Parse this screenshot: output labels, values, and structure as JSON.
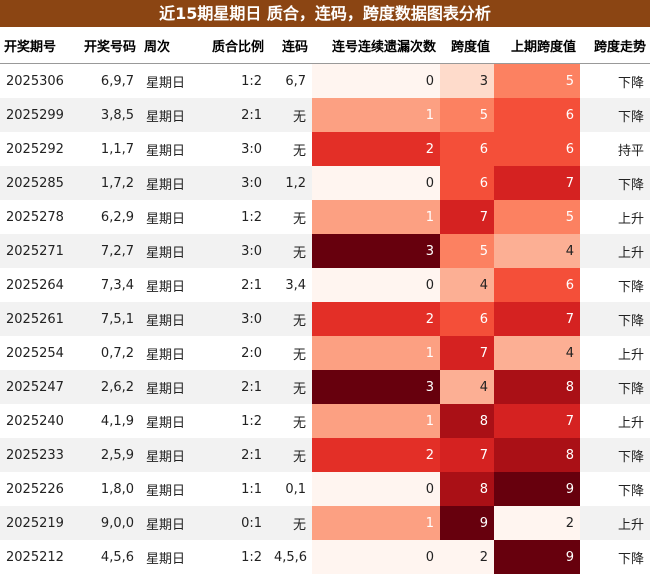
{
  "header": {
    "title": "近15期星期日 质合，连码，跨度数据图表分析"
  },
  "table": {
    "columns": [
      "开奖期号",
      "开奖号码",
      "周次",
      "质合比例",
      "连码",
      "连号连续遗漏次数",
      "跨度值",
      "上期跨度值",
      "跨度走势"
    ],
    "rows": [
      [
        "2025306",
        "6,9,7",
        "星期日",
        "1:2",
        "6,7",
        0,
        3,
        5,
        "下降"
      ],
      [
        "2025299",
        "3,8,5",
        "星期日",
        "2:1",
        "无",
        1,
        5,
        6,
        "下降"
      ],
      [
        "2025292",
        "1,1,7",
        "星期日",
        "3:0",
        "无",
        2,
        6,
        6,
        "持平"
      ],
      [
        "2025285",
        "1,7,2",
        "星期日",
        "3:0",
        "1,2",
        0,
        6,
        7,
        "下降"
      ],
      [
        "2025278",
        "6,2,9",
        "星期日",
        "1:2",
        "无",
        1,
        7,
        5,
        "上升"
      ],
      [
        "2025271",
        "7,2,7",
        "星期日",
        "3:0",
        "无",
        3,
        5,
        4,
        "上升"
      ],
      [
        "2025264",
        "7,3,4",
        "星期日",
        "2:1",
        "3,4",
        0,
        4,
        6,
        "下降"
      ],
      [
        "2025261",
        "7,5,1",
        "星期日",
        "3:0",
        "无",
        2,
        6,
        7,
        "下降"
      ],
      [
        "2025254",
        "0,7,2",
        "星期日",
        "2:0",
        "无",
        1,
        7,
        4,
        "上升"
      ],
      [
        "2025247",
        "2,6,2",
        "星期日",
        "2:1",
        "无",
        3,
        4,
        8,
        "下降"
      ],
      [
        "2025240",
        "4,1,9",
        "星期日",
        "1:2",
        "无",
        1,
        8,
        7,
        "上升"
      ],
      [
        "2025233",
        "2,5,9",
        "星期日",
        "2:1",
        "无",
        2,
        7,
        8,
        "下降"
      ],
      [
        "2025226",
        "1,8,0",
        "星期日",
        "1:1",
        "0,1",
        0,
        8,
        9,
        "下降"
      ],
      [
        "2025219",
        "9,0,0",
        "星期日",
        "0:1",
        "无",
        1,
        9,
        2,
        "上升"
      ],
      [
        "2025212",
        "4,5,6",
        "星期日",
        "1:2",
        "4,5,6",
        0,
        2,
        9,
        "下降"
      ]
    ]
  }
}
